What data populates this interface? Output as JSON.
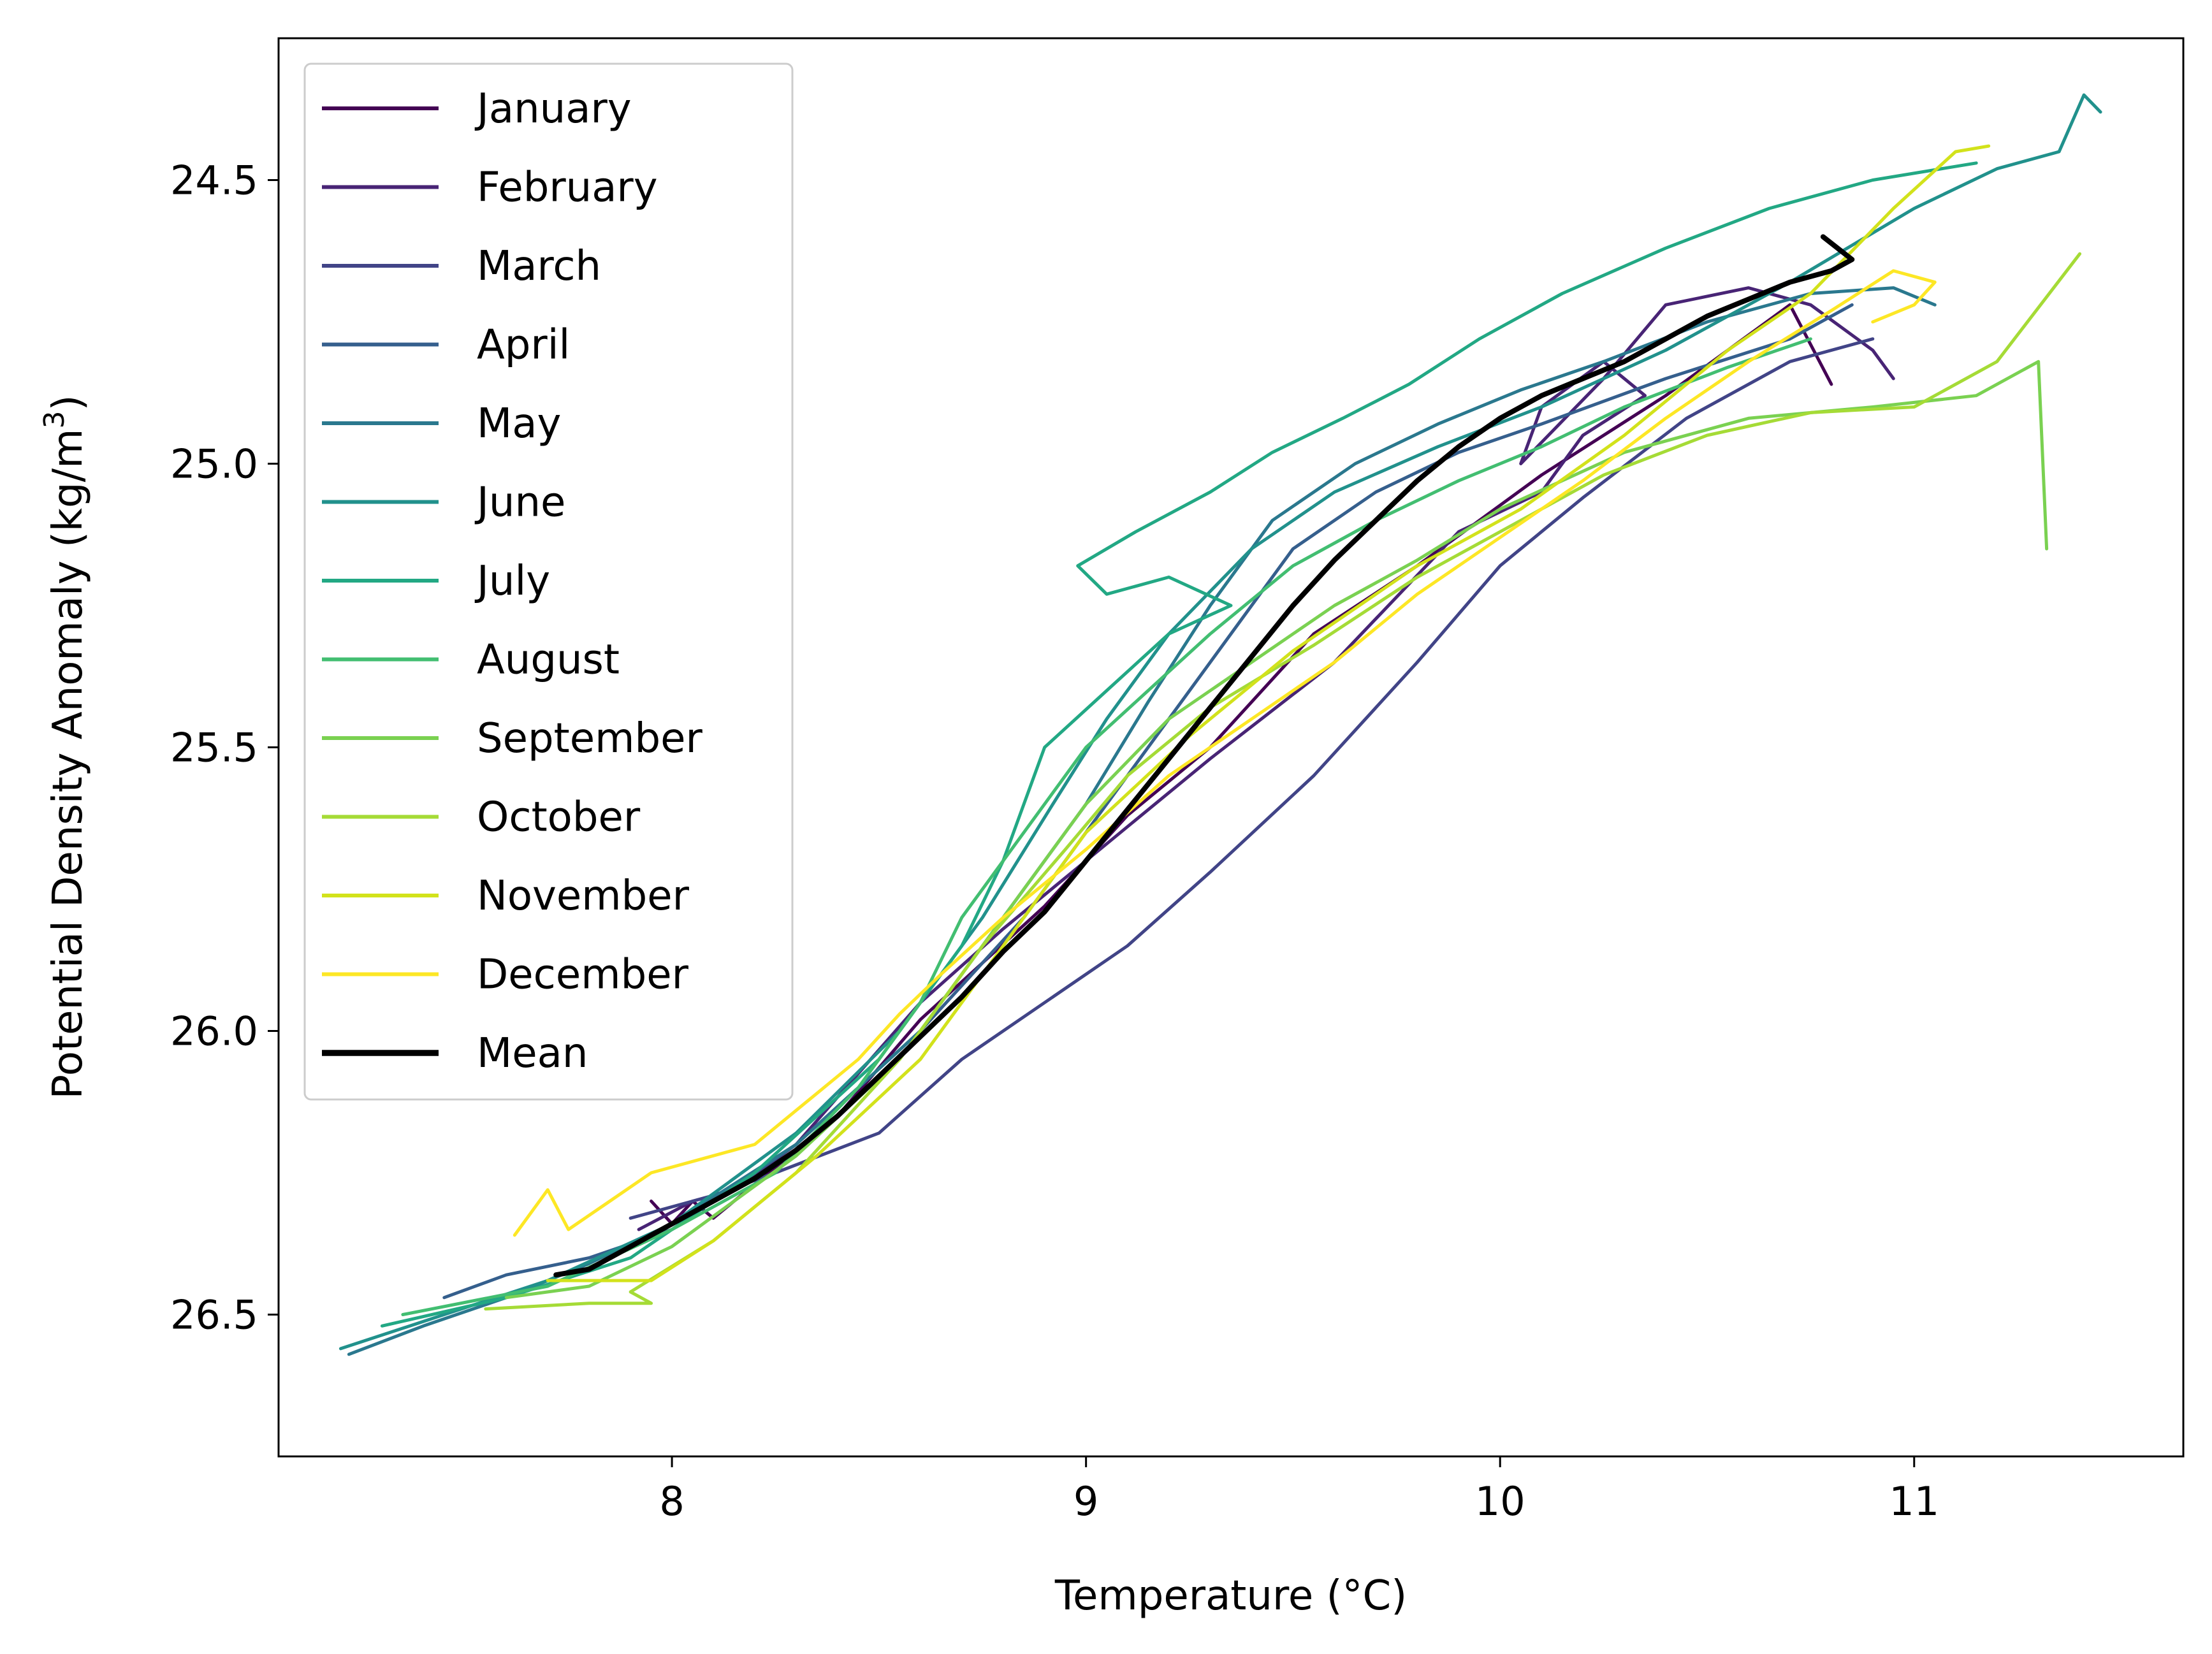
{
  "chart_data": {
    "type": "line",
    "xlabel": "Temperature (°C)",
    "ylabel_main": "Potential Density Anomaly (kg/m",
    "ylabel_sup": "3",
    "ylabel_end": ")",
    "xlim": [
      7.05,
      11.65
    ],
    "ylim": [
      26.75,
      24.25
    ],
    "y_inverted": true,
    "x_ticks": [
      8,
      9,
      10,
      11
    ],
    "x_tick_labels": [
      "8",
      "9",
      "10",
      "11"
    ],
    "y_ticks": [
      24.5,
      25.0,
      25.5,
      26.0,
      26.5
    ],
    "y_tick_labels": [
      "24.5",
      "25.0",
      "25.5",
      "26.0",
      "26.5"
    ],
    "grid": false,
    "legend_position": "top-left",
    "series": [
      {
        "name": "January",
        "color": "#440154",
        "width": 2.5,
        "points": [
          [
            7.95,
            26.3
          ],
          [
            8.0,
            26.34
          ],
          [
            8.05,
            26.3
          ],
          [
            8.1,
            26.33
          ],
          [
            8.2,
            26.27
          ],
          [
            8.4,
            26.15
          ],
          [
            8.6,
            25.98
          ],
          [
            8.75,
            25.88
          ],
          [
            8.9,
            25.78
          ],
          [
            9.1,
            25.62
          ],
          [
            9.3,
            25.5
          ],
          [
            9.55,
            25.3
          ],
          [
            9.8,
            25.18
          ],
          [
            10.1,
            25.02
          ],
          [
            10.4,
            24.88
          ],
          [
            10.7,
            24.72
          ],
          [
            10.8,
            24.86
          ]
        ]
      },
      {
        "name": "February",
        "color": "#482475",
        "width": 2.5,
        "points": [
          [
            7.92,
            26.35
          ],
          [
            8.05,
            26.3
          ],
          [
            8.15,
            26.28
          ],
          [
            8.3,
            26.2
          ],
          [
            8.6,
            25.95
          ],
          [
            8.8,
            25.82
          ],
          [
            9.0,
            25.7
          ],
          [
            9.3,
            25.52
          ],
          [
            9.6,
            25.35
          ],
          [
            9.9,
            25.12
          ],
          [
            10.1,
            25.05
          ],
          [
            10.2,
            24.95
          ],
          [
            10.35,
            24.88
          ],
          [
            10.25,
            24.82
          ],
          [
            10.1,
            24.9
          ],
          [
            10.05,
            25.0
          ],
          [
            10.25,
            24.85
          ],
          [
            10.4,
            24.72
          ],
          [
            10.6,
            24.69
          ],
          [
            10.75,
            24.72
          ],
          [
            10.9,
            24.8
          ],
          [
            10.95,
            24.85
          ]
        ]
      },
      {
        "name": "March",
        "color": "#414487",
        "width": 2.5,
        "points": [
          [
            7.9,
            26.33
          ],
          [
            8.1,
            26.29
          ],
          [
            8.25,
            26.25
          ],
          [
            8.5,
            26.18
          ],
          [
            8.7,
            26.05
          ],
          [
            8.9,
            25.95
          ],
          [
            9.1,
            25.85
          ],
          [
            9.3,
            25.72
          ],
          [
            9.55,
            25.55
          ],
          [
            9.8,
            25.35
          ],
          [
            10.0,
            25.18
          ],
          [
            10.2,
            25.06
          ],
          [
            10.45,
            24.92
          ],
          [
            10.7,
            24.82
          ],
          [
            10.9,
            24.78
          ]
        ]
      },
      {
        "name": "April",
        "color": "#355f8d",
        "width": 2.5,
        "points": [
          [
            7.45,
            26.47
          ],
          [
            7.6,
            26.43
          ],
          [
            7.8,
            26.4
          ],
          [
            8.0,
            26.35
          ],
          [
            8.3,
            26.2
          ],
          [
            8.6,
            26.0
          ],
          [
            8.85,
            25.8
          ],
          [
            9.05,
            25.6
          ],
          [
            9.2,
            25.45
          ],
          [
            9.35,
            25.3
          ],
          [
            9.5,
            25.15
          ],
          [
            9.7,
            25.05
          ],
          [
            9.9,
            24.98
          ],
          [
            10.1,
            24.93
          ],
          [
            10.4,
            24.85
          ],
          [
            10.7,
            24.78
          ],
          [
            10.85,
            24.72
          ]
        ]
      },
      {
        "name": "May",
        "color": "#2a788e",
        "width": 2.5,
        "points": [
          [
            7.22,
            26.57
          ],
          [
            7.4,
            26.52
          ],
          [
            7.6,
            26.47
          ],
          [
            7.8,
            26.41
          ],
          [
            8.0,
            26.34
          ],
          [
            8.3,
            26.2
          ],
          [
            8.6,
            26.0
          ],
          [
            8.8,
            25.8
          ],
          [
            9.0,
            25.6
          ],
          [
            9.15,
            25.42
          ],
          [
            9.3,
            25.25
          ],
          [
            9.45,
            25.1
          ],
          [
            9.65,
            25.0
          ],
          [
            9.85,
            24.93
          ],
          [
            10.05,
            24.87
          ],
          [
            10.25,
            24.82
          ],
          [
            10.5,
            24.75
          ],
          [
            10.75,
            24.7
          ],
          [
            10.95,
            24.69
          ],
          [
            11.05,
            24.72
          ]
        ]
      },
      {
        "name": "June",
        "color": "#21918c",
        "width": 2.5,
        "points": [
          [
            7.2,
            26.56
          ],
          [
            7.45,
            26.5
          ],
          [
            7.7,
            26.44
          ],
          [
            8.0,
            26.34
          ],
          [
            8.3,
            26.18
          ],
          [
            8.55,
            26.0
          ],
          [
            8.75,
            25.8
          ],
          [
            8.92,
            25.6
          ],
          [
            9.05,
            25.45
          ],
          [
            9.2,
            25.3
          ],
          [
            9.4,
            25.15
          ],
          [
            9.6,
            25.05
          ],
          [
            9.85,
            24.97
          ],
          [
            10.1,
            24.9
          ],
          [
            10.4,
            24.8
          ],
          [
            10.7,
            24.68
          ],
          [
            11.0,
            24.55
          ],
          [
            11.2,
            24.48
          ],
          [
            11.35,
            24.45
          ],
          [
            11.41,
            24.35
          ],
          [
            11.45,
            24.38
          ]
        ]
      },
      {
        "name": "July",
        "color": "#22a884",
        "width": 2.5,
        "points": [
          [
            7.3,
            26.52
          ],
          [
            7.6,
            26.47
          ],
          [
            7.9,
            26.4
          ],
          [
            8.2,
            26.25
          ],
          [
            8.5,
            26.05
          ],
          [
            8.7,
            25.85
          ],
          [
            8.8,
            25.7
          ],
          [
            8.9,
            25.5
          ],
          [
            9.05,
            25.4
          ],
          [
            9.2,
            25.3
          ],
          [
            9.35,
            25.25
          ],
          [
            9.2,
            25.2
          ],
          [
            9.05,
            25.23
          ],
          [
            8.98,
            25.18
          ],
          [
            9.12,
            25.12
          ],
          [
            9.3,
            25.05
          ],
          [
            9.45,
            24.98
          ],
          [
            9.62,
            24.92
          ],
          [
            9.78,
            24.86
          ],
          [
            9.95,
            24.78
          ],
          [
            10.15,
            24.7
          ],
          [
            10.4,
            24.62
          ],
          [
            10.65,
            24.55
          ],
          [
            10.9,
            24.5
          ],
          [
            11.15,
            24.47
          ]
        ]
      },
      {
        "name": "August",
        "color": "#42be71",
        "width": 2.5,
        "points": [
          [
            7.35,
            26.5
          ],
          [
            7.7,
            26.45
          ],
          [
            8.0,
            26.35
          ],
          [
            8.25,
            26.25
          ],
          [
            8.45,
            26.1
          ],
          [
            8.6,
            25.95
          ],
          [
            8.7,
            25.8
          ],
          [
            8.85,
            25.65
          ],
          [
            9.0,
            25.5
          ],
          [
            9.15,
            25.4
          ],
          [
            9.3,
            25.3
          ],
          [
            9.5,
            25.18
          ],
          [
            9.7,
            25.1
          ],
          [
            9.9,
            25.03
          ],
          [
            10.1,
            24.97
          ],
          [
            10.3,
            24.9
          ],
          [
            10.55,
            24.83
          ],
          [
            10.75,
            24.78
          ]
        ]
      },
      {
        "name": "September",
        "color": "#7ad151",
        "width": 2.5,
        "points": [
          [
            7.6,
            26.47
          ],
          [
            7.8,
            26.45
          ],
          [
            8.0,
            26.38
          ],
          [
            8.3,
            26.22
          ],
          [
            8.55,
            26.05
          ],
          [
            8.7,
            25.9
          ],
          [
            8.85,
            25.75
          ],
          [
            9.0,
            25.6
          ],
          [
            9.2,
            25.45
          ],
          [
            9.4,
            25.35
          ],
          [
            9.6,
            25.25
          ],
          [
            9.8,
            25.17
          ],
          [
            10.0,
            25.08
          ],
          [
            10.3,
            24.98
          ],
          [
            10.6,
            24.92
          ],
          [
            10.9,
            24.9
          ],
          [
            11.15,
            24.88
          ],
          [
            11.3,
            24.82
          ],
          [
            11.32,
            25.15
          ]
        ]
      },
      {
        "name": "October",
        "color": "#a5db36",
        "width": 2.5,
        "points": [
          [
            7.55,
            26.49
          ],
          [
            7.8,
            26.48
          ],
          [
            7.95,
            26.48
          ],
          [
            7.9,
            26.46
          ],
          [
            8.1,
            26.37
          ],
          [
            8.3,
            26.25
          ],
          [
            8.55,
            26.05
          ],
          [
            8.75,
            25.85
          ],
          [
            8.95,
            25.68
          ],
          [
            9.1,
            25.55
          ],
          [
            9.3,
            25.43
          ],
          [
            9.55,
            25.32
          ],
          [
            9.8,
            25.2
          ],
          [
            10.0,
            25.12
          ],
          [
            10.25,
            25.02
          ],
          [
            10.5,
            24.95
          ],
          [
            10.75,
            24.91
          ],
          [
            11.0,
            24.9
          ],
          [
            11.2,
            24.82
          ],
          [
            11.4,
            24.63
          ]
        ]
      },
      {
        "name": "November",
        "color": "#d2e21b",
        "width": 2.5,
        "points": [
          [
            7.7,
            26.44
          ],
          [
            7.85,
            26.44
          ],
          [
            7.95,
            26.44
          ],
          [
            8.1,
            26.37
          ],
          [
            8.35,
            26.22
          ],
          [
            8.6,
            26.05
          ],
          [
            8.8,
            25.85
          ],
          [
            9.0,
            25.65
          ],
          [
            9.25,
            25.48
          ],
          [
            9.5,
            25.33
          ],
          [
            9.8,
            25.18
          ],
          [
            10.05,
            25.08
          ],
          [
            10.3,
            24.95
          ],
          [
            10.55,
            24.8
          ],
          [
            10.75,
            24.7
          ],
          [
            10.95,
            24.55
          ],
          [
            11.1,
            24.45
          ],
          [
            11.18,
            24.44
          ]
        ]
      },
      {
        "name": "December",
        "color": "#fde725",
        "width": 2.5,
        "points": [
          [
            7.62,
            26.36
          ],
          [
            7.7,
            26.28
          ],
          [
            7.75,
            26.35
          ],
          [
            7.85,
            26.3
          ],
          [
            7.95,
            26.25
          ],
          [
            8.1,
            26.22
          ],
          [
            8.2,
            26.2
          ],
          [
            8.3,
            26.14
          ],
          [
            8.45,
            26.05
          ],
          [
            8.55,
            25.97
          ],
          [
            8.65,
            25.9
          ],
          [
            8.8,
            25.8
          ],
          [
            9.0,
            25.68
          ],
          [
            9.2,
            25.55
          ],
          [
            9.4,
            25.45
          ],
          [
            9.6,
            25.35
          ],
          [
            9.8,
            25.23
          ],
          [
            10.0,
            25.13
          ],
          [
            10.2,
            25.03
          ],
          [
            10.4,
            24.92
          ],
          [
            10.6,
            24.82
          ],
          [
            10.8,
            24.73
          ],
          [
            10.95,
            24.66
          ],
          [
            11.05,
            24.68
          ],
          [
            11.0,
            24.72
          ],
          [
            10.9,
            24.75
          ]
        ]
      },
      {
        "name": "Mean",
        "color": "#000000",
        "width": 4,
        "points": [
          [
            7.72,
            26.43
          ],
          [
            7.8,
            26.42
          ],
          [
            7.9,
            26.38
          ],
          [
            8.0,
            26.34
          ],
          [
            8.1,
            26.3
          ],
          [
            8.2,
            26.26
          ],
          [
            8.3,
            26.21
          ],
          [
            8.4,
            26.15
          ],
          [
            8.5,
            26.08
          ],
          [
            8.6,
            26.01
          ],
          [
            8.7,
            25.94
          ],
          [
            8.8,
            25.86
          ],
          [
            8.9,
            25.79
          ],
          [
            9.0,
            25.7
          ],
          [
            9.1,
            25.61
          ],
          [
            9.2,
            25.52
          ],
          [
            9.3,
            25.43
          ],
          [
            9.4,
            25.34
          ],
          [
            9.5,
            25.25
          ],
          [
            9.6,
            25.17
          ],
          [
            9.7,
            25.1
          ],
          [
            9.8,
            25.03
          ],
          [
            9.9,
            24.97
          ],
          [
            10.0,
            24.92
          ],
          [
            10.1,
            24.88
          ],
          [
            10.2,
            24.85
          ],
          [
            10.3,
            24.82
          ],
          [
            10.4,
            24.78
          ],
          [
            10.5,
            24.74
          ],
          [
            10.6,
            24.71
          ],
          [
            10.7,
            24.68
          ],
          [
            10.8,
            24.66
          ],
          [
            10.85,
            24.64
          ],
          [
            10.78,
            24.6
          ]
        ]
      }
    ]
  }
}
